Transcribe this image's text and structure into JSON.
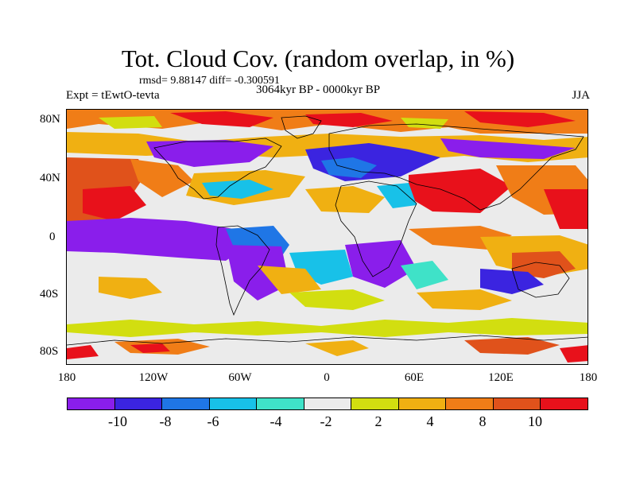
{
  "title": "Tot. Cloud Cov. (random overlap, in %)",
  "stats": "rmsd= 9.88147 diff= -0.300591",
  "experiment": "Expt = tEwtO-tevta",
  "period": "3064kyr BP - 0000kyr BP",
  "season": "JJA",
  "map": {
    "lat_labels": [
      "80N",
      "40N",
      "0",
      "40S",
      "80S"
    ],
    "lon_labels": [
      "180",
      "120W",
      "60W",
      "0",
      "60E",
      "120E",
      "180"
    ]
  },
  "colorbar": {
    "labels": [
      "-10",
      "-8",
      "-6",
      "-4",
      "-2",
      "2",
      "4",
      "8",
      "10"
    ],
    "colors": [
      "#8a1eeb",
      "#3b24e0",
      "#1f76e6",
      "#18c1e8",
      "#3fe2c8",
      "#ebebeb",
      "#d2de10",
      "#f0b012",
      "#f07d17",
      "#e0521b",
      "#e8111b"
    ]
  },
  "colors": {
    "land_outline": "#000000",
    "background": "#ebebeb"
  }
}
